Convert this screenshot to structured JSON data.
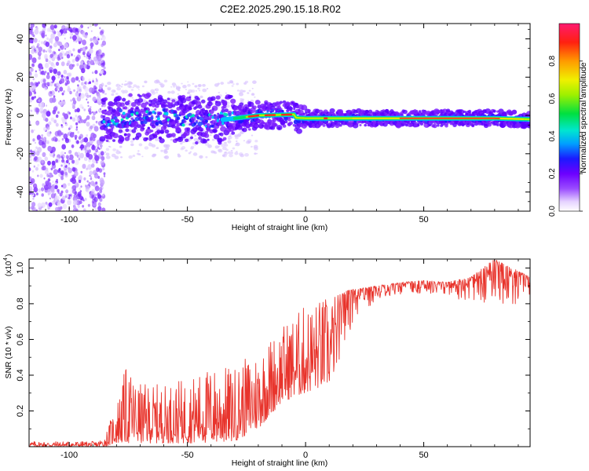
{
  "title": "C2E2.2025.290.15.18.R02",
  "chart_data": [
    {
      "type": "heatmap",
      "name": "spectrogram",
      "xlabel": "Height of straight line (km)",
      "ylabel": "Frequency (Hz)",
      "xlim": [
        -117,
        95
      ],
      "ylim": [
        -50,
        48
      ],
      "x_ticks": [
        -100,
        -50,
        0,
        50
      ],
      "x_tick_labels": [
        "-100",
        "-50",
        "0",
        "50"
      ],
      "y_ticks": [
        -40,
        -20,
        0,
        20,
        40
      ],
      "y_tick_labels": [
        "-40",
        "-20",
        "0",
        "20",
        "40"
      ],
      "ridge": [
        {
          "x": -85,
          "y": -2
        },
        {
          "x": -70,
          "y": -1
        },
        {
          "x": -55,
          "y": -1.5
        },
        {
          "x": -40,
          "y": -3
        },
        {
          "x": -30,
          "y": -1.5
        },
        {
          "x": -20,
          "y": 0
        },
        {
          "x": -5,
          "y": 0.5
        },
        {
          "x": -4,
          "y": -1.2
        },
        {
          "x": 0,
          "y": -1.5
        },
        {
          "x": 40,
          "y": -1.5
        },
        {
          "x": 80,
          "y": -1.5
        },
        {
          "x": 95,
          "y": -2
        }
      ],
      "colorbar": {
        "label": "Normalized spectral amplitude",
        "range": [
          0,
          1
        ],
        "ticks": [
          0.0,
          0.2,
          0.4,
          0.6,
          0.8
        ],
        "tick_labels": [
          "0.0",
          "0.2",
          "0.4",
          "0.6",
          "0.8"
        ]
      }
    },
    {
      "type": "line",
      "name": "snr",
      "color": "#e8342c",
      "xlabel": "Height of straight line (km)",
      "ylabel": "SNR (10 * v/v)",
      "multiplier": "(x10^4)",
      "multiplier_base": "(x10",
      "multiplier_exp": "4",
      "multiplier_close": ")",
      "xlim": [
        -117,
        95
      ],
      "ylim": [
        0,
        1.05
      ],
      "x_ticks": [
        -100,
        -50,
        0,
        50
      ],
      "x_tick_labels": [
        "-100",
        "-50",
        "0",
        "50"
      ],
      "y_ticks": [
        0.2,
        0.4,
        0.6,
        0.8,
        1.0
      ],
      "y_tick_labels": [
        "0.2",
        "0.4",
        "0.6",
        "0.8",
        "1.0"
      ],
      "envelope": [
        {
          "x": -117,
          "low": 0.0,
          "high": 0.03
        },
        {
          "x": -88,
          "low": 0.0,
          "high": 0.03
        },
        {
          "x": -85,
          "low": 0.0,
          "high": 0.06
        },
        {
          "x": -80,
          "low": 0.02,
          "high": 0.25
        },
        {
          "x": -76,
          "low": 0.02,
          "high": 0.45
        },
        {
          "x": -70,
          "low": 0.02,
          "high": 0.35
        },
        {
          "x": -60,
          "low": 0.02,
          "high": 0.35
        },
        {
          "x": -50,
          "low": 0.02,
          "high": 0.38
        },
        {
          "x": -40,
          "low": 0.02,
          "high": 0.45
        },
        {
          "x": -30,
          "low": 0.03,
          "high": 0.45
        },
        {
          "x": -20,
          "low": 0.1,
          "high": 0.55
        },
        {
          "x": -10,
          "low": 0.25,
          "high": 0.68
        },
        {
          "x": 0,
          "low": 0.3,
          "high": 0.8
        },
        {
          "x": 10,
          "low": 0.35,
          "high": 0.85
        },
        {
          "x": 20,
          "low": 0.68,
          "high": 0.88
        },
        {
          "x": 30,
          "low": 0.82,
          "high": 0.9
        },
        {
          "x": 40,
          "low": 0.85,
          "high": 0.92
        },
        {
          "x": 50,
          "low": 0.86,
          "high": 0.93
        },
        {
          "x": 60,
          "low": 0.84,
          "high": 0.92
        },
        {
          "x": 70,
          "low": 0.8,
          "high": 0.95
        },
        {
          "x": 80,
          "low": 0.8,
          "high": 1.05
        },
        {
          "x": 95,
          "low": 0.8,
          "high": 0.95
        }
      ]
    }
  ]
}
